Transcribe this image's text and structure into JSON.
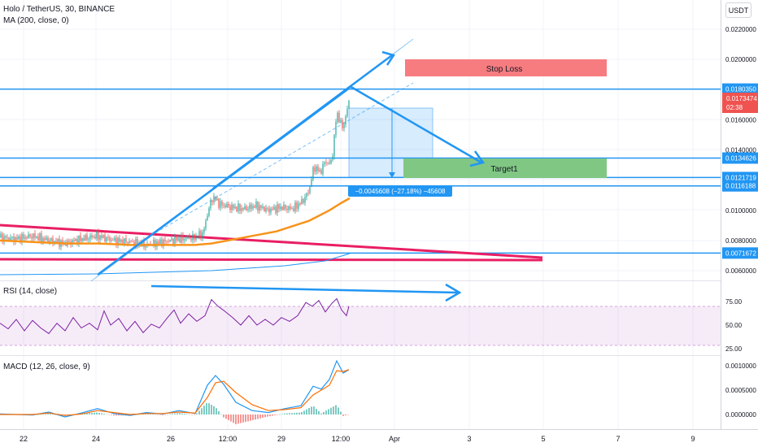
{
  "header": {
    "symbol_title": "Holo / TetherUS, 30, BINANCE",
    "ma_label": "MA (200, close, 0)",
    "currency": "USDT"
  },
  "panes": {
    "rsi_label": "RSI (14, close)",
    "macd_label": "MACD (12, 26, close, 9)"
  },
  "annotations": {
    "stop_loss": "Stop Loss",
    "target1": "Target1",
    "measure_label": "−0.0045608 (−27.18%) −45608"
  },
  "price_tags": {
    "current_price": "0.0173474",
    "countdown": "02:38"
  },
  "colors": {
    "up": "#26a69a",
    "down": "#ef5350",
    "ma": "#f7931a",
    "trend_lines": "#e91e63",
    "channel": "#2196f3",
    "rsi_line": "#7b1fa2",
    "macd_line": "#2196f3",
    "signal_line": "#ff6d00",
    "stop_loss_box": "#f77c80",
    "target_box": "#81c784"
  },
  "chart_data": [
    {
      "type": "candlestick",
      "title": "Holo / TetherUS, 30, BINANCE",
      "overlay": "MA (200, close, 0)",
      "x_tick_labels": [
        "22",
        "24",
        "26",
        "12:00",
        "29",
        "12:00",
        "Apr",
        "3",
        "5",
        "7",
        "9"
      ],
      "y_tick_labels": [
        "0.0220000",
        "0.0200000",
        "0.0160000",
        "0.0140000",
        "0.0100000",
        "0.0080000",
        "0.0060000"
      ],
      "ylim": [
        0.0055,
        0.0232
      ],
      "price_lines": [
        {
          "label": "0.0180350",
          "value": 0.018035
        },
        {
          "label": "0.0134626",
          "value": 0.0134626
        },
        {
          "label": "0.0121719",
          "value": 0.0121719
        },
        {
          "label": "0.0116188",
          "value": 0.0116188
        },
        {
          "label": "0.0071672",
          "value": 0.0071672
        }
      ],
      "price_path": [
        [
          0,
          0.0082
        ],
        [
          20,
          0.0081
        ],
        [
          40,
          0.0083
        ],
        [
          60,
          0.008
        ],
        [
          80,
          0.0078
        ],
        [
          100,
          0.0081
        ],
        [
          120,
          0.0083
        ],
        [
          140,
          0.008
        ],
        [
          160,
          0.0079
        ],
        [
          180,
          0.0077
        ],
        [
          200,
          0.0079
        ],
        [
          220,
          0.0081
        ],
        [
          240,
          0.0082
        ],
        [
          250,
          0.0085
        ],
        [
          256,
          0.01
        ],
        [
          262,
          0.0109
        ],
        [
          270,
          0.0104
        ],
        [
          285,
          0.0102
        ],
        [
          300,
          0.0101
        ],
        [
          315,
          0.0103
        ],
        [
          330,
          0.01
        ],
        [
          345,
          0.0102
        ],
        [
          360,
          0.0101
        ],
        [
          372,
          0.0106
        ],
        [
          380,
          0.0113
        ],
        [
          386,
          0.0129
        ],
        [
          394,
          0.0125
        ],
        [
          400,
          0.0133
        ],
        [
          406,
          0.013
        ],
        [
          410,
          0.0141
        ],
        [
          414,
          0.0166
        ],
        [
          418,
          0.0158
        ],
        [
          422,
          0.0155
        ],
        [
          426,
          0.0164
        ],
        [
          429,
          0.0173
        ]
      ],
      "ma_path": [
        [
          0,
          0.008
        ],
        [
          40,
          0.0079
        ],
        [
          80,
          0.0078
        ],
        [
          120,
          0.0078
        ],
        [
          160,
          0.0077
        ],
        [
          200,
          0.0077
        ],
        [
          240,
          0.0077
        ],
        [
          260,
          0.0078
        ],
        [
          300,
          0.0082
        ],
        [
          340,
          0.0086
        ],
        [
          380,
          0.0093
        ],
        [
          405,
          0.01
        ],
        [
          420,
          0.0105
        ],
        [
          430,
          0.0108
        ]
      ]
    },
    {
      "type": "line",
      "title": "RSI (14, close)",
      "y_tick_labels": [
        "75.00",
        "50.00",
        "25.00"
      ],
      "ylim": [
        20,
        85
      ],
      "band": [
        30,
        70
      ],
      "series": [
        {
          "values": [
            [
              0,
              52
            ],
            [
              10,
              46
            ],
            [
              20,
              56
            ],
            [
              30,
              44
            ],
            [
              40,
              55
            ],
            [
              50,
              47
            ],
            [
              60,
              41
            ],
            [
              70,
              52
            ],
            [
              80,
              44
            ],
            [
              90,
              58
            ],
            [
              100,
              47
            ],
            [
              110,
              52
            ],
            [
              120,
              45
            ],
            [
              128,
              65
            ],
            [
              136,
              50
            ],
            [
              146,
              57
            ],
            [
              156,
              44
            ],
            [
              166,
              54
            ],
            [
              176,
              42
            ],
            [
              186,
              51
            ],
            [
              196,
              47
            ],
            [
              206,
              58
            ],
            [
              214,
              66
            ],
            [
              222,
              52
            ],
            [
              232,
              62
            ],
            [
              242,
              54
            ],
            [
              252,
              60
            ],
            [
              260,
              77
            ],
            [
              268,
              70
            ],
            [
              276,
              65
            ],
            [
              286,
              58
            ],
            [
              296,
              50
            ],
            [
              306,
              60
            ],
            [
              316,
              50
            ],
            [
              326,
              56
            ],
            [
              336,
              50
            ],
            [
              346,
              58
            ],
            [
              356,
              54
            ],
            [
              366,
              60
            ],
            [
              376,
              74
            ],
            [
              384,
              70
            ],
            [
              392,
              76
            ],
            [
              400,
              64
            ],
            [
              408,
              73
            ],
            [
              414,
              78
            ],
            [
              420,
              66
            ],
            [
              426,
              60
            ],
            [
              429,
              70
            ]
          ]
        }
      ]
    },
    {
      "type": "line",
      "title": "MACD (12, 26, close, 9)",
      "y_tick_labels": [
        "0.0010000",
        "0.0005000",
        "0.0000000"
      ],
      "ylim": [
        -0.00025,
        0.0012
      ],
      "series": [
        {
          "values": [
            [
              0,
              1e-05
            ],
            [
              40,
              -1e-05
            ],
            [
              60,
              5e-05
            ],
            [
              80,
              -5e-05
            ],
            [
              100,
              3e-05
            ],
            [
              120,
              0.00012
            ],
            [
              140,
              2e-05
            ],
            [
              160,
              -2e-05
            ],
            [
              180,
              4e-05
            ],
            [
              200,
              1e-05
            ],
            [
              220,
              8e-05
            ],
            [
              240,
              2e-05
            ],
            [
              255,
              0.0006
            ],
            [
              265,
              0.0008
            ],
            [
              275,
              0.00062
            ],
            [
              290,
              0.00025
            ],
            [
              310,
              8e-05
            ],
            [
              330,
              4e-05
            ],
            [
              350,
              0.00012
            ],
            [
              370,
              0.00018
            ],
            [
              385,
              0.00058
            ],
            [
              395,
              0.00052
            ],
            [
              405,
              0.00072
            ],
            [
              414,
              0.0011
            ],
            [
              422,
              0.00085
            ],
            [
              429,
              0.00092
            ]
          ]
        },
        {
          "values": [
            [
              0,
              0.0
            ],
            [
              40,
              0.0
            ],
            [
              60,
              3e-05
            ],
            [
              80,
              -2e-05
            ],
            [
              100,
              1e-05
            ],
            [
              120,
              8e-05
            ],
            [
              140,
              4e-05
            ],
            [
              160,
              0.0
            ],
            [
              180,
              2e-05
            ],
            [
              200,
              2e-05
            ],
            [
              220,
              5e-05
            ],
            [
              240,
              3e-05
            ],
            [
              255,
              0.00035
            ],
            [
              265,
              0.00065
            ],
            [
              275,
              0.00068
            ],
            [
              290,
              0.00045
            ],
            [
              310,
              0.0002
            ],
            [
              330,
              8e-05
            ],
            [
              350,
              0.0001
            ],
            [
              370,
              0.00014
            ],
            [
              385,
              0.0004
            ],
            [
              395,
              0.0005
            ],
            [
              405,
              0.0006
            ],
            [
              414,
              0.0009
            ],
            [
              422,
              0.00088
            ],
            [
              429,
              0.00092
            ]
          ]
        }
      ]
    }
  ]
}
